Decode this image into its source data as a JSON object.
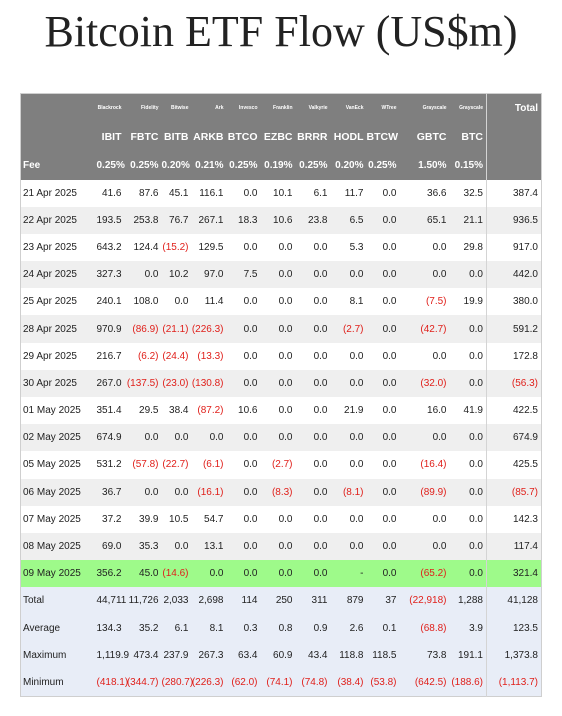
{
  "title": "Bitcoin ETF Flow (US$m)",
  "issuers": [
    "Blackrock",
    "Fidelity",
    "Bitwise",
    "Ark",
    "Invesco",
    "Franklin",
    "Valkyrie",
    "VanEck",
    "WTree",
    "Grayscale",
    "Grayscale"
  ],
  "total_header": "Total",
  "tickers": [
    "IBIT",
    "FBTC",
    "BITB",
    "ARKB",
    "BTCO",
    "EZBC",
    "BRRR",
    "HODL",
    "BTCW",
    "GBTC",
    "BTC"
  ],
  "fee_label": "Fee",
  "fees": [
    "0.25%",
    "0.25%",
    "0.20%",
    "0.21%",
    "0.25%",
    "0.19%",
    "0.25%",
    "0.20%",
    "0.25%",
    "1.50%",
    "0.15%"
  ],
  "rows": [
    {
      "date": "21 Apr 2025",
      "vals": [
        "41.6",
        "87.6",
        "45.1",
        "116.1",
        "0.0",
        "10.1",
        "6.1",
        "11.7",
        "0.0",
        "36.6",
        "32.5"
      ],
      "total": "387.4"
    },
    {
      "date": "22 Apr 2025",
      "vals": [
        "193.5",
        "253.8",
        "76.7",
        "267.1",
        "18.3",
        "10.6",
        "23.8",
        "6.5",
        "0.0",
        "65.1",
        "21.1"
      ],
      "total": "936.5"
    },
    {
      "date": "23 Apr 2025",
      "vals": [
        "643.2",
        "124.4",
        "(15.2)",
        "129.5",
        "0.0",
        "0.0",
        "0.0",
        "5.3",
        "0.0",
        "0.0",
        "29.8"
      ],
      "total": "917.0"
    },
    {
      "date": "24 Apr 2025",
      "vals": [
        "327.3",
        "0.0",
        "10.2",
        "97.0",
        "7.5",
        "0.0",
        "0.0",
        "0.0",
        "0.0",
        "0.0",
        "0.0"
      ],
      "total": "442.0"
    },
    {
      "date": "25 Apr 2025",
      "vals": [
        "240.1",
        "108.0",
        "0.0",
        "11.4",
        "0.0",
        "0.0",
        "0.0",
        "8.1",
        "0.0",
        "(7.5)",
        "19.9"
      ],
      "total": "380.0"
    },
    {
      "date": "28 Apr 2025",
      "vals": [
        "970.9",
        "(86.9)",
        "(21.1)",
        "(226.3)",
        "0.0",
        "0.0",
        "0.0",
        "(2.7)",
        "0.0",
        "(42.7)",
        "0.0"
      ],
      "total": "591.2"
    },
    {
      "date": "29 Apr 2025",
      "vals": [
        "216.7",
        "(6.2)",
        "(24.4)",
        "(13.3)",
        "0.0",
        "0.0",
        "0.0",
        "0.0",
        "0.0",
        "0.0",
        "0.0"
      ],
      "total": "172.8"
    },
    {
      "date": "30 Apr 2025",
      "vals": [
        "267.0",
        "(137.5)",
        "(23.0)",
        "(130.8)",
        "0.0",
        "0.0",
        "0.0",
        "0.0",
        "0.0",
        "(32.0)",
        "0.0"
      ],
      "total": "(56.3)"
    },
    {
      "date": "01 May 2025",
      "vals": [
        "351.4",
        "29.5",
        "38.4",
        "(87.2)",
        "10.6",
        "0.0",
        "0.0",
        "21.9",
        "0.0",
        "16.0",
        "41.9"
      ],
      "total": "422.5"
    },
    {
      "date": "02 May 2025",
      "vals": [
        "674.9",
        "0.0",
        "0.0",
        "0.0",
        "0.0",
        "0.0",
        "0.0",
        "0.0",
        "0.0",
        "0.0",
        "0.0"
      ],
      "total": "674.9"
    },
    {
      "date": "05 May 2025",
      "vals": [
        "531.2",
        "(57.8)",
        "(22.7)",
        "(6.1)",
        "0.0",
        "(2.7)",
        "0.0",
        "0.0",
        "0.0",
        "(16.4)",
        "0.0"
      ],
      "total": "425.5"
    },
    {
      "date": "06 May 2025",
      "vals": [
        "36.7",
        "0.0",
        "0.0",
        "(16.1)",
        "0.0",
        "(8.3)",
        "0.0",
        "(8.1)",
        "0.0",
        "(89.9)",
        "0.0"
      ],
      "total": "(85.7)"
    },
    {
      "date": "07 May 2025",
      "vals": [
        "37.2",
        "39.9",
        "10.5",
        "54.7",
        "0.0",
        "0.0",
        "0.0",
        "0.0",
        "0.0",
        "0.0",
        "0.0"
      ],
      "total": "142.3"
    },
    {
      "date": "08 May 2025",
      "vals": [
        "69.0",
        "35.3",
        "0.0",
        "13.1",
        "0.0",
        "0.0",
        "0.0",
        "0.0",
        "0.0",
        "0.0",
        "0.0"
      ],
      "total": "117.4"
    },
    {
      "date": "09 May 2025",
      "vals": [
        "356.2",
        "45.0",
        "(14.6)",
        "0.0",
        "0.0",
        "0.0",
        "0.0",
        "-",
        "0.0",
        "(65.2)",
        "0.0"
      ],
      "total": "321.4",
      "highlight": true
    }
  ],
  "summary": [
    {
      "label": "Total",
      "vals": [
        "44,711",
        "11,726",
        "2,033",
        "2,698",
        "114",
        "250",
        "311",
        "879",
        "37",
        "(22,918)",
        "1,288"
      ],
      "total": "41,128"
    },
    {
      "label": "Average",
      "vals": [
        "134.3",
        "35.2",
        "6.1",
        "8.1",
        "0.3",
        "0.8",
        "0.9",
        "2.6",
        "0.1",
        "(68.8)",
        "3.9"
      ],
      "total": "123.5"
    },
    {
      "label": "Maximum",
      "vals": [
        "1,119.9",
        "473.4",
        "237.9",
        "267.3",
        "63.4",
        "60.9",
        "43.4",
        "118.8",
        "118.5",
        "73.8",
        "191.1"
      ],
      "total": "1,373.8"
    },
    {
      "label": "Minimum",
      "vals": [
        "(418.1)",
        "(344.7)",
        "(280.7)",
        "(226.3)",
        "(62.0)",
        "(74.1)",
        "(74.8)",
        "(38.4)",
        "(53.8)",
        "(642.5)",
        "(188.6)"
      ],
      "total": "(1,113.7)"
    }
  ],
  "colors": {
    "header_bg": "#7f7f7f",
    "negative": "#e0201b",
    "highlight": "#9efa8a",
    "summary_bg": "#e8edf7",
    "odd_row": "#efefef"
  }
}
